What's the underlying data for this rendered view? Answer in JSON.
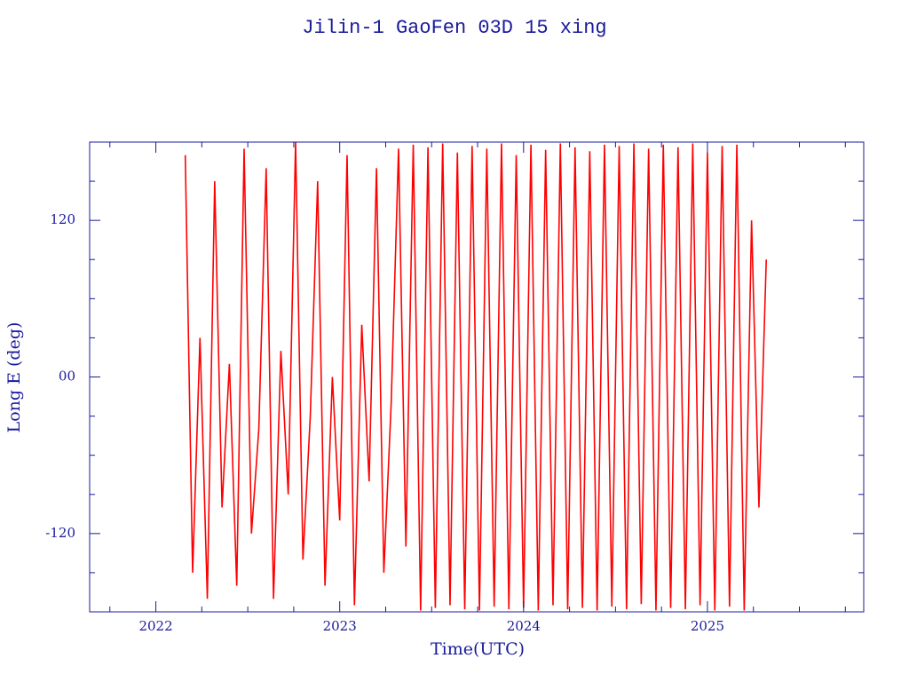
{
  "chart_data": {
    "type": "line",
    "title": "Jilin-1 GaoFen 03D 15 xing",
    "xlabel": "Time(UTC)",
    "ylabel": "Long E (deg)",
    "color": "#ff0000",
    "xlim": [
      2021.64,
      2025.85
    ],
    "ylim": [
      -180,
      180
    ],
    "xticks": [
      2022,
      2023,
      2024,
      2025
    ],
    "xminorticks": [
      2021.75,
      2022.25,
      2022.5,
      2022.75,
      2023.25,
      2023.5,
      2023.75,
      2024.25,
      2024.5,
      2024.75,
      2025.25,
      2025.5,
      2025.75
    ],
    "yticks": [
      120,
      {
        "value": 0,
        "label": "00"
      },
      -120
    ],
    "yminorticks": [
      150,
      90,
      60,
      30,
      -30,
      -60,
      -90,
      -150
    ],
    "x": [
      2022.16,
      2022.2,
      2022.24,
      2022.28,
      2022.32,
      2022.36,
      2022.4,
      2022.44,
      2022.48,
      2022.52,
      2022.56,
      2022.6,
      2022.64,
      2022.68,
      2022.72,
      2022.76,
      2022.8,
      2022.84,
      2022.88,
      2022.92,
      2022.96,
      2023,
      2023.04,
      2023.08,
      2023.12,
      2023.16,
      2023.2,
      2023.24,
      2023.28,
      2023.32,
      2023.36,
      2023.4,
      2023.44,
      2023.48,
      2023.52,
      2023.56,
      2023.6,
      2023.64,
      2023.68,
      2023.72,
      2023.76,
      2023.8,
      2023.84,
      2023.88,
      2023.92,
      2023.96,
      2024,
      2024.04,
      2024.08,
      2024.12,
      2024.16,
      2024.2,
      2024.24,
      2024.28,
      2024.32,
      2024.36,
      2024.4,
      2024.44,
      2024.48,
      2024.52,
      2024.56,
      2024.6,
      2024.64,
      2024.68,
      2024.72,
      2024.76,
      2024.8,
      2024.84,
      2024.88,
      2024.92,
      2024.96,
      2025,
      2025.04,
      2025.08,
      2025.12,
      2025.16,
      2025.2,
      2025.24,
      2025.28,
      2025.32
    ],
    "values": [
      170,
      -150,
      30,
      -170,
      150,
      -100,
      10,
      -160,
      175,
      -120,
      -40,
      160,
      -170,
      20,
      -90,
      180,
      -140,
      -30,
      150,
      -160,
      0,
      -110,
      170,
      -175,
      40,
      -80,
      160,
      -150,
      -20,
      175,
      -130,
      178,
      -179,
      176,
      -177,
      179,
      -175,
      172,
      -178,
      177,
      -179,
      175,
      -176,
      179,
      -178,
      170,
      -177,
      178,
      -179,
      174,
      -175,
      179,
      -178,
      176,
      -177,
      173,
      -179,
      178,
      -176,
      177,
      -178,
      179,
      -174,
      175,
      -179,
      178,
      -177,
      176,
      -178,
      179,
      -175,
      172,
      -179,
      177,
      -176,
      178,
      -179,
      120,
      -100,
      90
    ]
  }
}
